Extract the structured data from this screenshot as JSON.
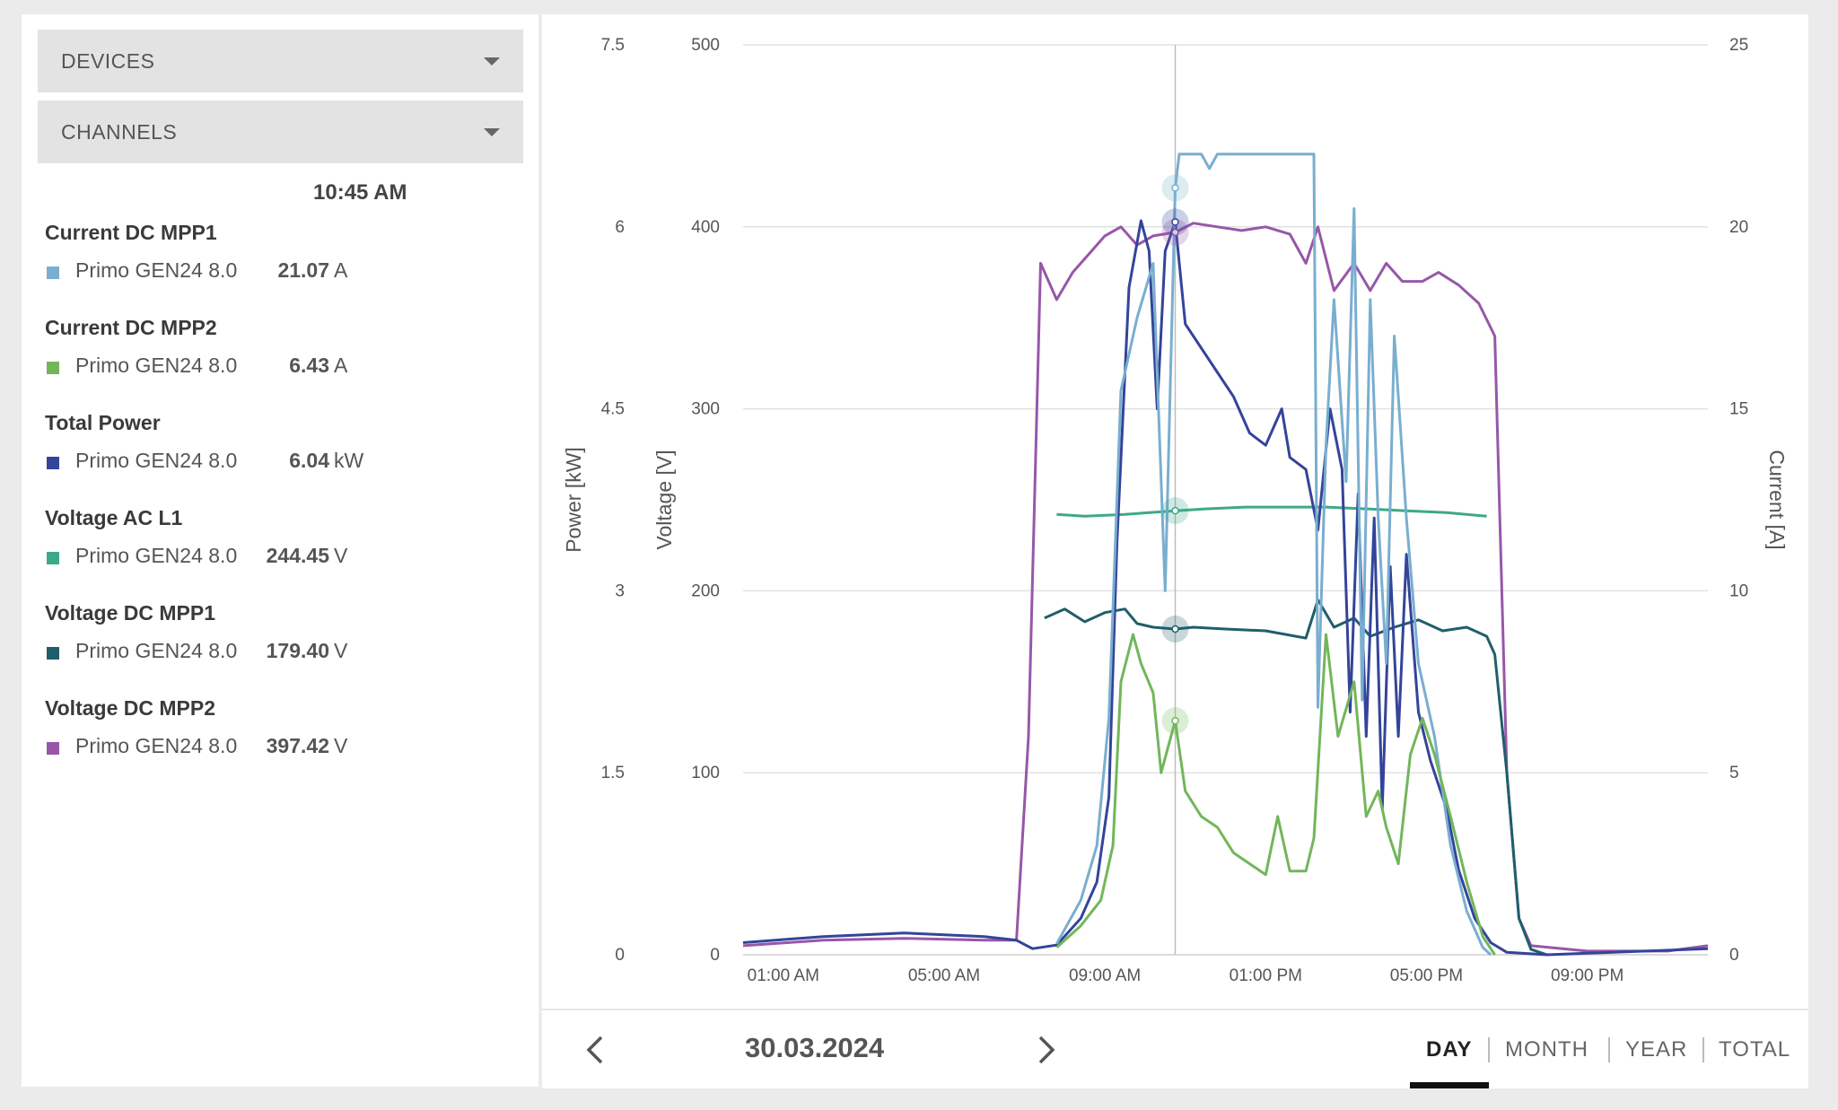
{
  "sidebar": {
    "devices_label": "DEVICES",
    "channels_label": "CHANNELS",
    "time": "10:45 AM",
    "channels": [
      {
        "title": "Current DC MPP1",
        "device": "Primo GEN24 8.0",
        "value": "21.07",
        "unit": "A",
        "color": "#79aed0"
      },
      {
        "title": "Current DC MPP2",
        "device": "Primo GEN24 8.0",
        "value": "6.43",
        "unit": "A",
        "color": "#72b65b"
      },
      {
        "title": "Total Power",
        "device": "Primo GEN24 8.0",
        "value": "6.04",
        "unit": "kW",
        "color": "#34449a"
      },
      {
        "title": "Voltage AC L1",
        "device": "Primo GEN24 8.0",
        "value": "244.45",
        "unit": "V",
        "color": "#3ea88a"
      },
      {
        "title": "Voltage DC MPP1",
        "device": "Primo GEN24 8.0",
        "value": "179.40",
        "unit": "V",
        "color": "#1f5f6b"
      },
      {
        "title": "Voltage DC MPP2",
        "device": "Primo GEN24 8.0",
        "value": "397.42",
        "unit": "V",
        "color": "#9757a8"
      }
    ]
  },
  "footer": {
    "date": "30.03.2024",
    "periods": [
      "DAY",
      "MONTH",
      "YEAR",
      "TOTAL"
    ],
    "active_period": "DAY"
  },
  "chart_data": {
    "type": "line",
    "x_unit": "hour",
    "x_ticks": [
      {
        "x": 1,
        "label": "01:00 AM"
      },
      {
        "x": 5,
        "label": "05:00 AM"
      },
      {
        "x": 9,
        "label": "09:00 AM"
      },
      {
        "x": 13,
        "label": "01:00 PM"
      },
      {
        "x": 17,
        "label": "05:00 PM"
      },
      {
        "x": 21,
        "label": "09:00 PM"
      }
    ],
    "xlim": [
      0,
      24
    ],
    "cursor_x": 10.75,
    "axes": {
      "power": {
        "label": "Power [kW]",
        "range": [
          0,
          7.5
        ],
        "ticks": [
          "0",
          "1.5",
          "3",
          "4.5",
          "6",
          "7.5"
        ]
      },
      "voltage": {
        "label": "Voltage [V]",
        "range": [
          0,
          500
        ],
        "ticks": [
          "0",
          "100",
          "200",
          "300",
          "400",
          "500"
        ]
      },
      "current": {
        "label": "Current [A]",
        "range": [
          0,
          25
        ],
        "ticks": [
          "0",
          "5",
          "10",
          "15",
          "20",
          "25"
        ]
      }
    },
    "grid": true,
    "series": [
      {
        "name": "Voltage DC MPP2",
        "axis": "voltage",
        "color": "#9757a8",
        "points": [
          [
            0,
            5
          ],
          [
            2,
            8
          ],
          [
            4,
            9
          ],
          [
            6,
            8
          ],
          [
            6.8,
            8
          ],
          [
            7.1,
            120
          ],
          [
            7.4,
            380
          ],
          [
            7.8,
            360
          ],
          [
            8.2,
            375
          ],
          [
            8.6,
            385
          ],
          [
            9,
            395
          ],
          [
            9.4,
            400
          ],
          [
            9.8,
            390
          ],
          [
            10.2,
            395
          ],
          [
            10.75,
            397
          ],
          [
            11.2,
            402
          ],
          [
            11.8,
            400
          ],
          [
            12.4,
            398
          ],
          [
            13,
            400
          ],
          [
            13.6,
            396
          ],
          [
            14,
            380
          ],
          [
            14.3,
            400
          ],
          [
            14.7,
            365
          ],
          [
            15.2,
            380
          ],
          [
            15.6,
            365
          ],
          [
            16,
            380
          ],
          [
            16.4,
            370
          ],
          [
            16.9,
            370
          ],
          [
            17.3,
            375
          ],
          [
            17.8,
            368
          ],
          [
            18.3,
            358
          ],
          [
            18.7,
            340
          ],
          [
            19,
            100
          ],
          [
            19.3,
            20
          ],
          [
            19.6,
            5
          ],
          [
            21,
            2
          ],
          [
            23,
            2
          ],
          [
            24,
            5
          ]
        ]
      },
      {
        "name": "Voltage DC MPP1",
        "axis": "voltage",
        "color": "#1f5f6b",
        "points": [
          [
            7.5,
            185
          ],
          [
            8,
            190
          ],
          [
            8.5,
            183
          ],
          [
            9,
            188
          ],
          [
            9.5,
            190
          ],
          [
            9.8,
            182
          ],
          [
            10.2,
            180
          ],
          [
            10.75,
            179
          ],
          [
            11.2,
            180
          ],
          [
            12,
            179
          ],
          [
            13,
            178
          ],
          [
            14,
            174
          ],
          [
            14.3,
            195
          ],
          [
            14.7,
            180
          ],
          [
            15.2,
            185
          ],
          [
            15.6,
            175
          ],
          [
            16.2,
            180
          ],
          [
            16.8,
            184
          ],
          [
            17.4,
            178
          ],
          [
            18,
            180
          ],
          [
            18.5,
            175
          ],
          [
            18.7,
            165
          ],
          [
            19,
            100
          ],
          [
            19.3,
            20
          ],
          [
            19.6,
            3
          ],
          [
            20,
            0
          ]
        ]
      },
      {
        "name": "Voltage AC L1",
        "axis": "voltage",
        "color": "#3ea88a",
        "points": [
          [
            7.8,
            242
          ],
          [
            8.5,
            241
          ],
          [
            9.5,
            242
          ],
          [
            10.75,
            244
          ],
          [
            11.5,
            245
          ],
          [
            12.5,
            246
          ],
          [
            13.5,
            246
          ],
          [
            14.5,
            246
          ],
          [
            15.5,
            245
          ],
          [
            16.5,
            244
          ],
          [
            17.5,
            243
          ],
          [
            18.5,
            241
          ]
        ]
      },
      {
        "name": "Total Power",
        "axis": "power",
        "color": "#34449a",
        "points": [
          [
            0,
            0.1
          ],
          [
            2,
            0.15
          ],
          [
            4,
            0.18
          ],
          [
            6,
            0.15
          ],
          [
            6.8,
            0.12
          ],
          [
            7.2,
            0.05
          ],
          [
            7.8,
            0.08
          ],
          [
            8.4,
            0.3
          ],
          [
            8.8,
            0.6
          ],
          [
            9.1,
            1.3
          ],
          [
            9.3,
            3.4
          ],
          [
            9.6,
            5.5
          ],
          [
            9.9,
            6.05
          ],
          [
            10.1,
            5.8
          ],
          [
            10.3,
            4.5
          ],
          [
            10.5,
            5.8
          ],
          [
            10.75,
            6.04
          ],
          [
            11,
            5.2
          ],
          [
            11.4,
            5.0
          ],
          [
            11.8,
            4.8
          ],
          [
            12.2,
            4.6
          ],
          [
            12.6,
            4.3
          ],
          [
            13,
            4.2
          ],
          [
            13.4,
            4.5
          ],
          [
            13.6,
            4.1
          ],
          [
            14,
            4.0
          ],
          [
            14.3,
            3.5
          ],
          [
            14.6,
            4.5
          ],
          [
            14.9,
            4.0
          ],
          [
            15.1,
            2.0
          ],
          [
            15.3,
            3.8
          ],
          [
            15.5,
            1.8
          ],
          [
            15.7,
            3.6
          ],
          [
            15.9,
            1.2
          ],
          [
            16.1,
            3.2
          ],
          [
            16.3,
            1.8
          ],
          [
            16.5,
            3.3
          ],
          [
            16.8,
            2.0
          ],
          [
            17.1,
            1.6
          ],
          [
            17.5,
            1.2
          ],
          [
            17.8,
            0.7
          ],
          [
            18.2,
            0.3
          ],
          [
            18.6,
            0.1
          ],
          [
            19,
            0.02
          ],
          [
            20,
            0
          ],
          [
            24,
            0.05
          ]
        ]
      },
      {
        "name": "Current DC MPP1",
        "axis": "current",
        "color": "#79aed0",
        "points": [
          [
            7.8,
            0.3
          ],
          [
            8.4,
            1.5
          ],
          [
            8.8,
            3.0
          ],
          [
            9.1,
            6.5
          ],
          [
            9.4,
            15.5
          ],
          [
            9.8,
            17.5
          ],
          [
            10.2,
            19
          ],
          [
            10.5,
            10
          ],
          [
            10.75,
            21.07
          ],
          [
            10.85,
            22
          ],
          [
            11,
            22
          ],
          [
            11.4,
            22
          ],
          [
            11.6,
            21.6
          ],
          [
            11.8,
            22
          ],
          [
            13,
            22
          ],
          [
            14.2,
            22
          ],
          [
            14.3,
            6.8
          ],
          [
            14.5,
            14
          ],
          [
            14.7,
            18
          ],
          [
            15,
            13
          ],
          [
            15.2,
            20.5
          ],
          [
            15.4,
            7
          ],
          [
            15.6,
            18
          ],
          [
            15.8,
            12
          ],
          [
            16,
            8
          ],
          [
            16.2,
            17
          ],
          [
            16.5,
            12
          ],
          [
            16.8,
            8
          ],
          [
            17.2,
            6
          ],
          [
            17.6,
            3
          ],
          [
            18,
            1.2
          ],
          [
            18.4,
            0.2
          ],
          [
            18.6,
            0
          ]
        ]
      },
      {
        "name": "Current DC MPP2",
        "axis": "current",
        "color": "#72b65b",
        "points": [
          [
            7.8,
            0.2
          ],
          [
            8.4,
            0.8
          ],
          [
            8.9,
            1.5
          ],
          [
            9.2,
            3.0
          ],
          [
            9.4,
            7.5
          ],
          [
            9.7,
            8.8
          ],
          [
            9.9,
            8.0
          ],
          [
            10.2,
            7.2
          ],
          [
            10.4,
            5.0
          ],
          [
            10.75,
            6.43
          ],
          [
            11,
            4.5
          ],
          [
            11.4,
            3.8
          ],
          [
            11.8,
            3.5
          ],
          [
            12.2,
            2.8
          ],
          [
            12.6,
            2.5
          ],
          [
            13,
            2.2
          ],
          [
            13.3,
            3.8
          ],
          [
            13.6,
            2.3
          ],
          [
            14,
            2.3
          ],
          [
            14.2,
            3.2
          ],
          [
            14.5,
            8.8
          ],
          [
            14.8,
            6.0
          ],
          [
            15.2,
            7.5
          ],
          [
            15.5,
            3.8
          ],
          [
            15.8,
            4.5
          ],
          [
            16,
            3.5
          ],
          [
            16.3,
            2.5
          ],
          [
            16.6,
            5.5
          ],
          [
            16.9,
            6.5
          ],
          [
            17.2,
            5.5
          ],
          [
            17.6,
            3.8
          ],
          [
            18,
            2.0
          ],
          [
            18.4,
            0.5
          ],
          [
            18.7,
            0
          ]
        ]
      }
    ]
  }
}
